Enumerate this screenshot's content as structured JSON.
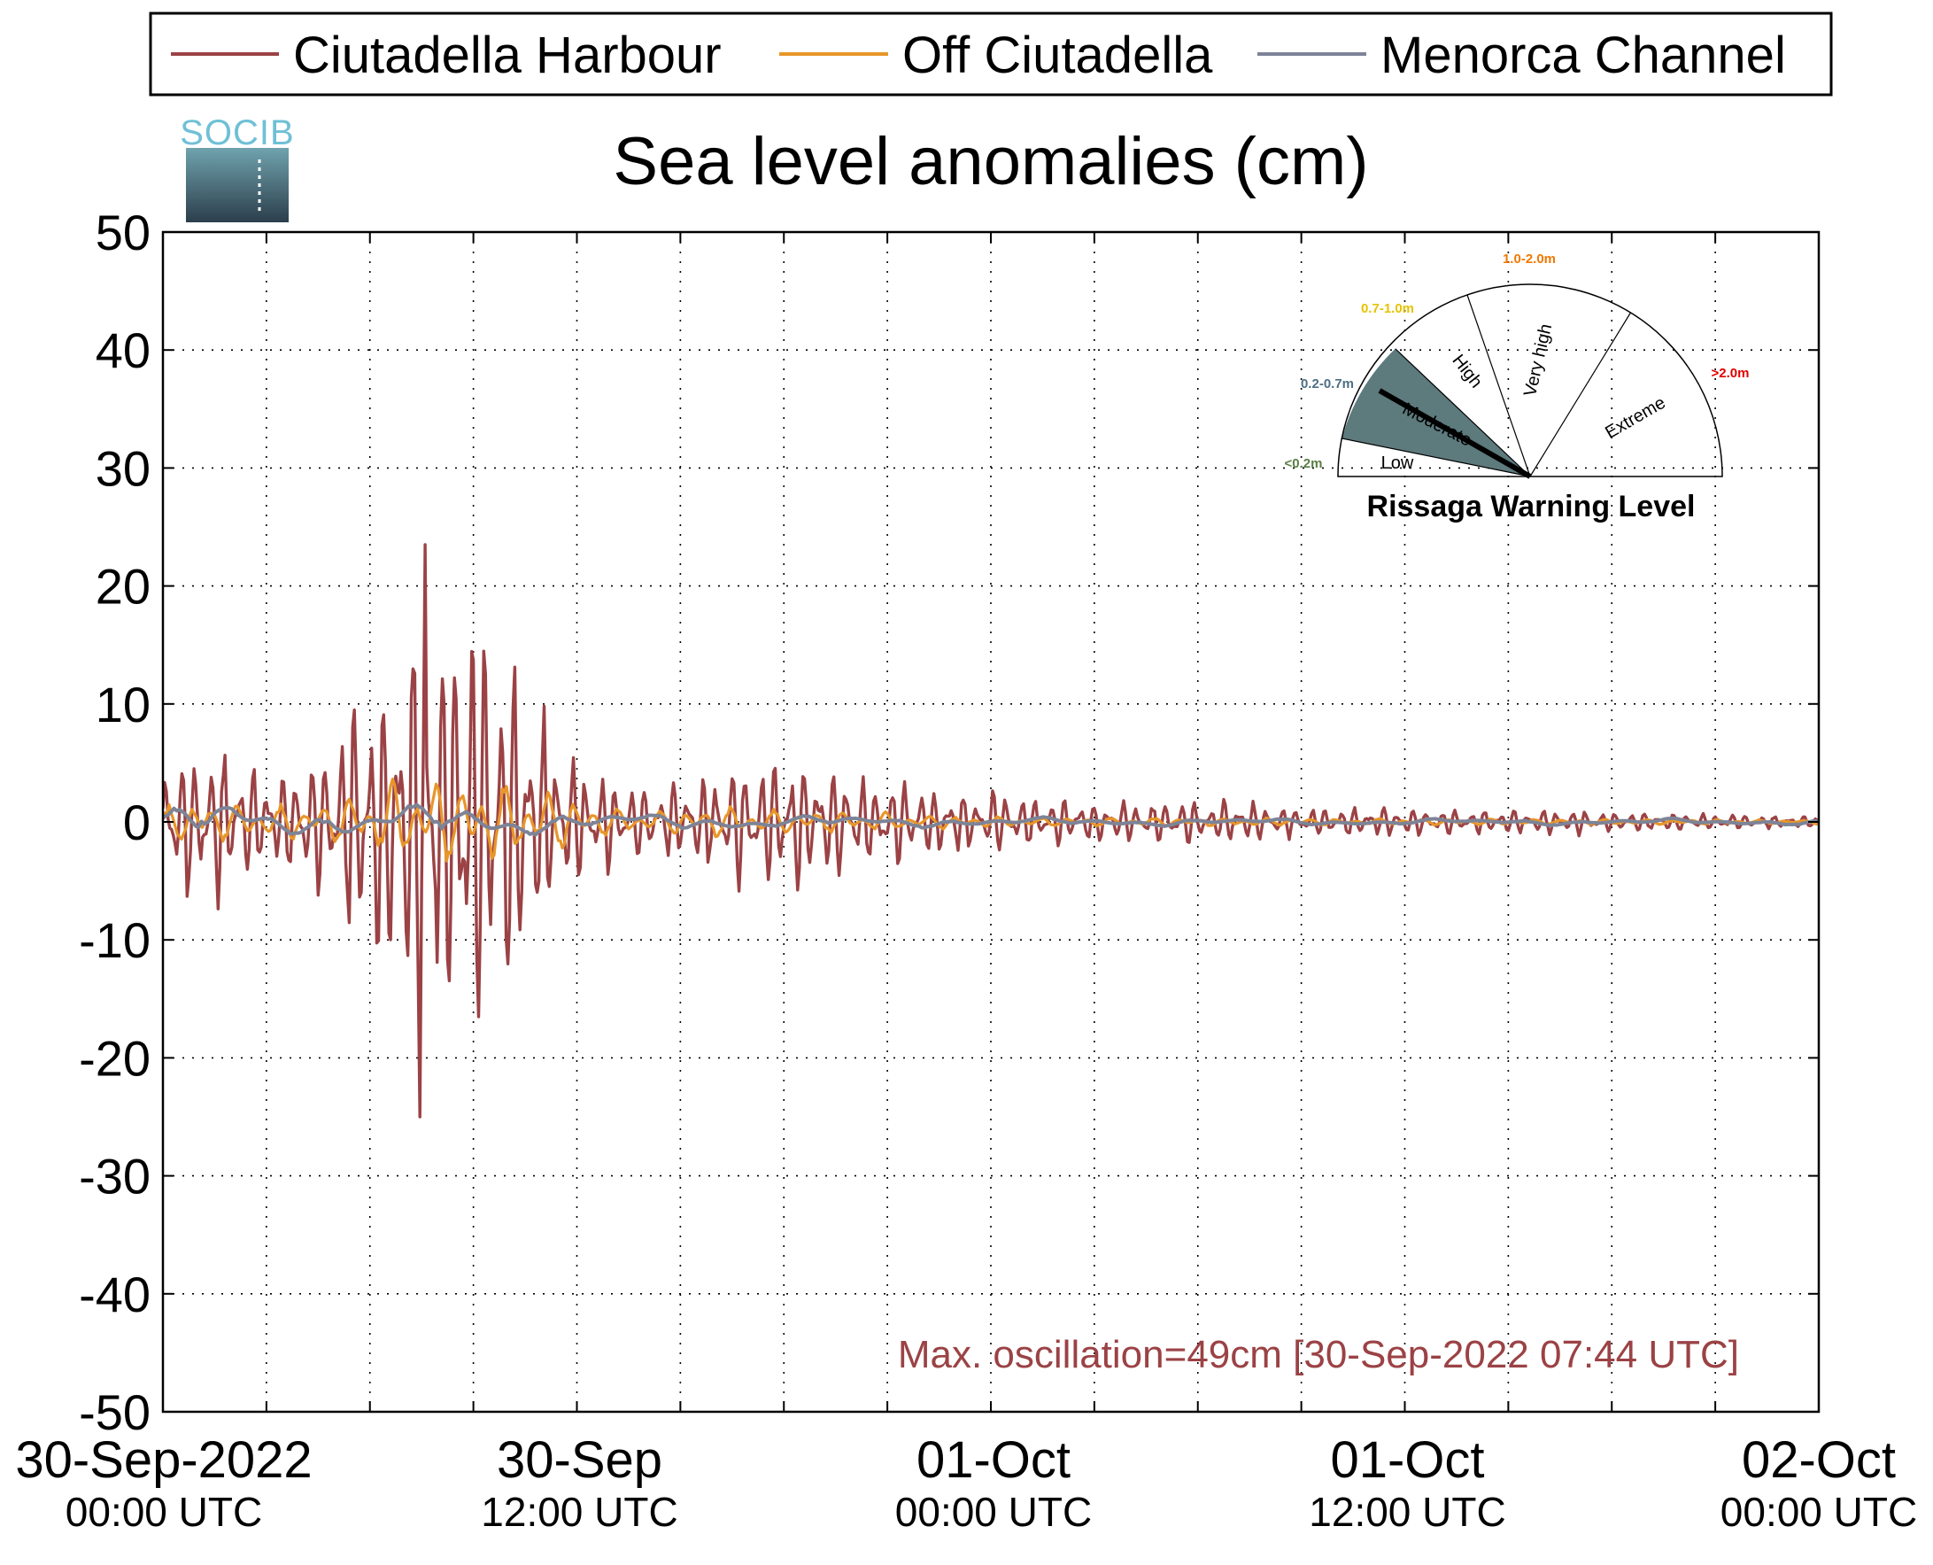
{
  "logo": {
    "text": "SOCIB"
  },
  "chart_data": {
    "type": "line",
    "title": "Sea level anomalies (cm)",
    "xlabel": "",
    "ylabel": "",
    "ylim": [
      -50,
      50
    ],
    "yticks": [
      50,
      40,
      30,
      20,
      10,
      0,
      -10,
      -20,
      -30,
      -40,
      -50
    ],
    "y_tick_labels": [
      "50",
      "40",
      "30",
      "20",
      "10",
      "0",
      "-10",
      "-20",
      "-30",
      "-40",
      "-50"
    ],
    "x_range_hours": [
      0,
      48
    ],
    "x_tick_labels": [
      {
        "hour": 0,
        "line1": "30-Sep-2022",
        "line2": "00:00 UTC"
      },
      {
        "hour": 12,
        "line1": "30-Sep",
        "line2": "12:00 UTC"
      },
      {
        "hour": 24,
        "line1": "01-Oct",
        "line2": "00:00 UTC"
      },
      {
        "hour": 36,
        "line1": "01-Oct",
        "line2": "12:00 UTC"
      },
      {
        "hour": 48,
        "line1": "02-Oct",
        "line2": "00:00 UTC"
      }
    ],
    "x_minor_tick_hours": [
      3,
      6,
      9,
      15,
      18,
      21,
      27,
      30,
      33,
      39,
      42,
      45
    ],
    "grid": true,
    "legend_position": "top",
    "series": [
      {
        "name": "Ciutadella Harbour",
        "color": "#9b4245",
        "envelope_hours": [
          0,
          0.5,
          1.5,
          3,
          4.5,
          5.5,
          6.5,
          7.5,
          8.5,
          9.5,
          10.5,
          11.5,
          12.5,
          14,
          15.5,
          16.5,
          18,
          19.5,
          21,
          23,
          25,
          27,
          29,
          31,
          33,
          35,
          37,
          39,
          41,
          43,
          45,
          47,
          48
        ],
        "envelope_amp_cm": [
          5,
          8,
          8,
          5,
          7,
          12,
          15,
          22,
          24,
          20,
          14,
          8,
          5,
          4,
          4,
          6,
          7,
          6,
          4,
          3.5,
          2.5,
          2,
          2,
          2,
          1.5,
          1.5,
          1.2,
          1.2,
          1.2,
          1,
          0.8,
          0.6,
          0.6
        ],
        "max_cm": 23.5,
        "min_cm": -25
      },
      {
        "name": "Off Ciutadella",
        "color": "#e8962a",
        "envelope_hours": [
          0,
          1,
          3,
          5,
          6.5,
          7.5,
          8.5,
          9.5,
          10.5,
          11.5,
          12.5,
          14,
          16,
          18,
          20,
          22,
          24,
          30,
          36,
          42,
          48
        ],
        "envelope_amp_cm": [
          1.5,
          2.5,
          1.5,
          2,
          3.5,
          4.5,
          4.5,
          4,
          3.5,
          3,
          1.5,
          1,
          1.5,
          1.2,
          1,
          0.7,
          0.5,
          0.4,
          0.3,
          0.3,
          0.2
        ]
      },
      {
        "name": "Menorca Channel",
        "color": "#7d8498",
        "envelope_hours": [
          0,
          1,
          3,
          6,
          8,
          10,
          12,
          16,
          20,
          24,
          36,
          48
        ],
        "envelope_amp_cm": [
          1,
          1.5,
          0.8,
          1,
          1.2,
          1,
          0.6,
          0.5,
          0.4,
          0.3,
          0.2,
          0.2
        ]
      }
    ],
    "annotation": "Max. oscillation=49cm [30-Sep-2022 07:44 UTC]",
    "annotation_color": "#9b4245"
  },
  "gauge": {
    "title": "Rissaga Warning Level",
    "current_level": "Moderate",
    "sectors": [
      {
        "label": "Low",
        "range": "<0.2m",
        "range_color": "#5b7f45"
      },
      {
        "label": "Moderate",
        "range": "0.2-0.7m",
        "range_color": "#4e6f84"
      },
      {
        "label": "High",
        "range": "0.7-1.0m",
        "range_color": "#e6c300"
      },
      {
        "label": "Very high",
        "range": "1.0-2.0m",
        "range_color": "#f07800"
      },
      {
        "label": "Extreme",
        "range": ">2.0m",
        "range_color": "#e00000"
      }
    ],
    "active_fill_color": "#5d7a7d"
  }
}
